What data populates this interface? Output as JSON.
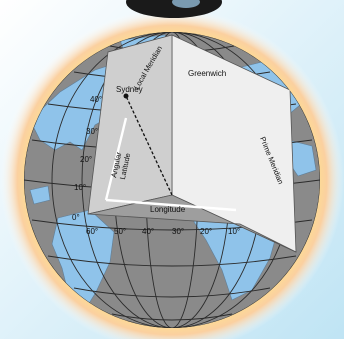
{
  "labels": {
    "local_meridian": "Local Meridian",
    "greenwich": "Greenwich",
    "prime_meridian": "Prime Meridian",
    "sydney": "Sydney",
    "latitude_line1": "Angular",
    "latitude_line2": "Latitude",
    "longitude": "Longitude"
  },
  "latitude_ticks": [
    "40°",
    "30°",
    "20°",
    "10°",
    "0°"
  ],
  "longitude_ticks": [
    "60°",
    "50°",
    "40°",
    "30°",
    "20°",
    "10°"
  ],
  "colors": {
    "ocean": "#8c8c8c",
    "land": "#8fc3ea",
    "wedge_light": "#efefef",
    "wedge_mid": "#c9c9c9",
    "wedge_dark": "#9a9a9a",
    "glow_outer": "#f7c8c4",
    "glow_inner": "#f9e07a"
  }
}
